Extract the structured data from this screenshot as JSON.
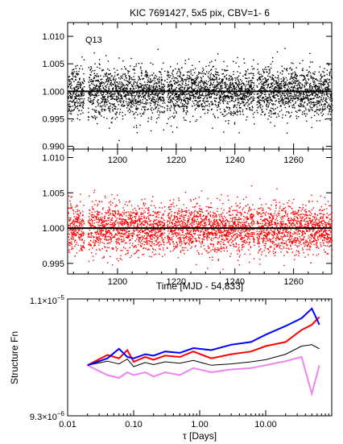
{
  "figure": {
    "title": "KIC 7691427,  5x5 pix, CBV=1- 6"
  },
  "chart_data": [
    {
      "type": "scatter",
      "panel_label": "Q13",
      "xlim": [
        1183,
        1273
      ],
      "ylim": [
        0.9895,
        1.0125
      ],
      "yticks": [
        0.99,
        0.995,
        1.0,
        1.005,
        1.01
      ],
      "ytick_labels": [
        "0.990",
        "0.995",
        "1.000",
        "1.005",
        "1.010"
      ],
      "xticks": [
        1200,
        1220,
        1240,
        1260
      ],
      "xtick_labels": [],
      "reference_line": 1.0,
      "series": [
        {
          "color": "#000000",
          "points": 3800,
          "center": 1.0,
          "scatter_sigma": 0.0022,
          "gaps": [
            [
              1188.5,
              1189.8
            ],
            [
              1216.0,
              1216.7
            ],
            [
              1246.5,
              1247.3
            ]
          ]
        }
      ]
    },
    {
      "type": "scatter",
      "xlim": [
        1183,
        1273
      ],
      "ylim": [
        0.9935,
        1.0112
      ],
      "yticks": [
        0.995,
        1.0,
        1.005,
        1.01
      ],
      "ytick_labels": [
        "0.995",
        "1.000",
        "1.005",
        "1.010"
      ],
      "xticks": [
        1200,
        1220,
        1240,
        1260
      ],
      "xtick_labels": [
        "1200",
        "1220",
        "1240",
        "1260"
      ],
      "top_xtick_labels": [
        "1200",
        "1220",
        "1240",
        "1260"
      ],
      "xlabel": "Time [MJD - 54,833]",
      "reference_line": 1.0,
      "series": [
        {
          "color": "#ff0000",
          "points": 3800,
          "center": 1.0,
          "scatter_sigma": 0.0017,
          "gaps": [
            [
              1188.5,
              1189.8
            ],
            [
              1216.0,
              1216.7
            ],
            [
              1246.5,
              1247.3
            ]
          ]
        }
      ]
    },
    {
      "type": "line",
      "xscale": "log",
      "yscale": "log",
      "xlim": [
        0.01,
        100
      ],
      "ylim": [
        9.3e-06,
        1.1e-05
      ],
      "xticks": [
        0.01,
        0.1,
        1,
        10
      ],
      "xtick_labels": [
        "0.01",
        "0.10",
        "1.00",
        "10.00"
      ],
      "ytick_labels": [
        "9.3x10-6",
        "1.1x10-5"
      ],
      "xlabel": "τ [Days]",
      "ylabel": "Structure Fn",
      "series": [
        {
          "color": "#000000",
          "x": [
            0.02,
            0.04,
            0.06,
            0.08,
            0.1,
            0.15,
            0.2,
            0.3,
            0.5,
            0.8,
            1.5,
            3,
            6,
            10,
            20,
            35,
            50,
            65
          ],
          "y": [
            1e-05,
            1.006e-05,
            1.002e-05,
            1.009e-05,
            9.98e-06,
            1.004e-05,
            1.001e-05,
            1.005e-05,
            1.003e-05,
            1.007e-05,
            1e-05,
            1.002e-05,
            1.005e-05,
            1.008e-05,
            1.016e-05,
            1.028e-05,
            1.03e-05,
            1.024e-05
          ]
        },
        {
          "color": "#ff0000",
          "x": [
            0.02,
            0.04,
            0.06,
            0.08,
            0.1,
            0.15,
            0.2,
            0.3,
            0.5,
            0.8,
            1.5,
            3,
            6,
            10,
            20,
            35,
            50,
            65
          ],
          "y": [
            1e-05,
            1.015e-05,
            1.01e-05,
            1.022e-05,
            1.005e-05,
            1.012e-05,
            1.008e-05,
            1.014e-05,
            1.012e-05,
            1.02e-05,
            1.01e-05,
            1.016e-05,
            1.02e-05,
            1.028e-05,
            1.034e-05,
            1.052e-05,
            1.06e-05,
            1.072e-05
          ]
        },
        {
          "color": "#0000ff",
          "x": [
            0.02,
            0.04,
            0.06,
            0.08,
            0.1,
            0.15,
            0.2,
            0.3,
            0.5,
            0.8,
            1.5,
            3,
            6,
            10,
            20,
            35,
            50,
            65
          ],
          "y": [
            1e-05,
            1.01e-05,
            1.024e-05,
            1.012e-05,
            1.01e-05,
            1.016e-05,
            1.014e-05,
            1.02e-05,
            1.018e-05,
            1.025e-05,
            1.022e-05,
            1.03e-05,
            1.034e-05,
            1.045e-05,
            1.058e-05,
            1.07e-05,
            1.085e-05,
            1.06e-05
          ]
        },
        {
          "color": "#ee82ee",
          "x": [
            0.02,
            0.04,
            0.06,
            0.08,
            0.1,
            0.15,
            0.2,
            0.3,
            0.5,
            0.8,
            1.5,
            3,
            6,
            10,
            20,
            35,
            50,
            65
          ],
          "y": [
            1e-05,
            9.86e-06,
            9.82e-06,
            9.9e-06,
            9.86e-06,
            9.9e-06,
            9.84e-06,
            9.9e-06,
            9.86e-06,
            9.96e-06,
            9.9e-06,
            9.94e-06,
            9.96e-06,
            1e-05,
            1.006e-05,
            1.012e-05,
            9.6e-06,
            1e-05
          ]
        }
      ]
    }
  ]
}
